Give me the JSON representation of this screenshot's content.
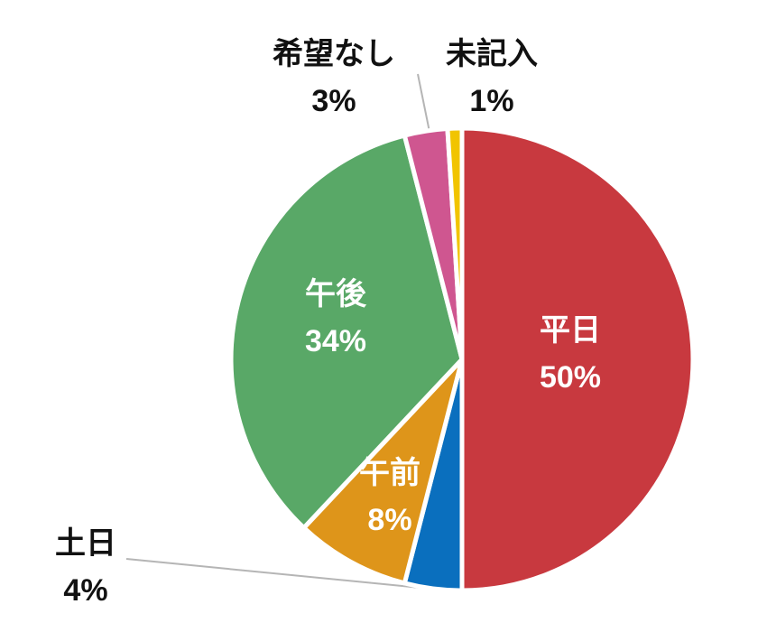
{
  "chart_data": {
    "type": "pie",
    "categories": [
      "平日",
      "土日",
      "午前",
      "午後",
      "希望なし",
      "未記入"
    ],
    "values": [
      50,
      4,
      8,
      34,
      3,
      1
    ],
    "value_labels": [
      "50%",
      "4%",
      "8%",
      "34%",
      "3%",
      "1%"
    ],
    "colors": [
      "#c8393f",
      "#0a6fbe",
      "#de951a",
      "#59a867",
      "#cf5690",
      "#f1c400"
    ]
  }
}
